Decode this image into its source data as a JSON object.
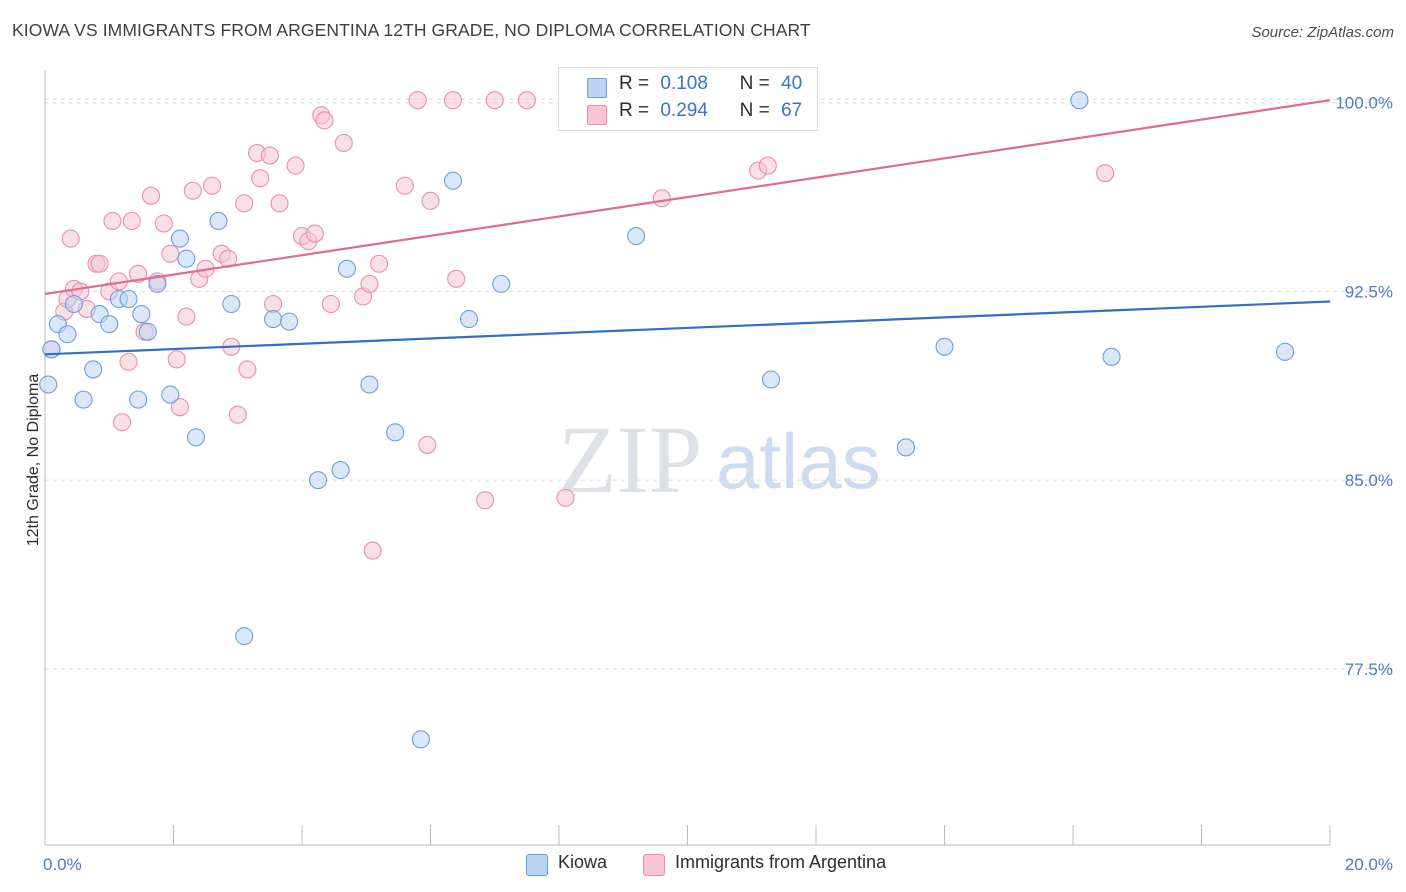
{
  "header": {
    "title": "KIOWA VS IMMIGRANTS FROM ARGENTINA 12TH GRADE, NO DIPLOMA CORRELATION CHART",
    "source": "Source: ZipAtlas.com"
  },
  "watermark": {
    "zip": "ZIP",
    "atlas": "atlas"
  },
  "legend": {
    "r_label": "R =",
    "n_label": "N =",
    "series": [
      {
        "name": "Kiowa",
        "r": "0.108",
        "n": "40"
      },
      {
        "name": "Immigrants from Argentina",
        "r": "0.294",
        "n": "67"
      }
    ]
  },
  "colors": {
    "kiowa_fill": "#b9d3f3",
    "kiowa_stroke": "#6f9edb",
    "kiowa_line": "#2f6fc6",
    "arg_fill": "#f7c5d4",
    "arg_stroke": "#e98fab",
    "arg_line": "#e06a92",
    "grid": "#d9dde3",
    "tick_label": "#4a7cc8"
  },
  "chart_data": {
    "type": "scatter",
    "ylabel": "12th Grade, No Diploma",
    "xlim": [
      0,
      20
    ],
    "ylim": [
      70.5,
      101.3
    ],
    "x_tick_labels": [
      {
        "value": 0,
        "label": "0.0%"
      },
      {
        "value": 20,
        "label": "20.0%"
      }
    ],
    "x_minor_ticks": [
      0,
      2,
      4,
      6,
      8,
      10,
      12,
      14,
      16,
      18,
      20
    ],
    "y_ticks": [
      {
        "value": 100,
        "label": "100.0%"
      },
      {
        "value": 92.5,
        "label": "92.5%"
      },
      {
        "value": 85,
        "label": "85.0%"
      },
      {
        "value": 77.5,
        "label": "77.5%"
      }
    ],
    "grid": true,
    "series": [
      {
        "name": "Kiowa",
        "trend": {
          "x": [
            0,
            20
          ],
          "y": [
            90.0,
            92.1
          ]
        },
        "points": [
          [
            0.05,
            88.8
          ],
          [
            0.2,
            91.2
          ],
          [
            0.35,
            90.8
          ],
          [
            0.45,
            92.0
          ],
          [
            0.6,
            88.2
          ],
          [
            0.75,
            89.4
          ],
          [
            0.85,
            91.6
          ],
          [
            1.0,
            91.2
          ],
          [
            1.15,
            92.2
          ],
          [
            1.3,
            92.2
          ],
          [
            1.45,
            88.2
          ],
          [
            1.5,
            91.6
          ],
          [
            1.6,
            90.9
          ],
          [
            1.75,
            92.8
          ],
          [
            1.95,
            88.4
          ],
          [
            2.1,
            94.6
          ],
          [
            2.2,
            93.8
          ],
          [
            2.35,
            86.7
          ],
          [
            2.7,
            95.3
          ],
          [
            2.9,
            92.0
          ],
          [
            3.1,
            78.8
          ],
          [
            3.55,
            91.4
          ],
          [
            3.8,
            91.3
          ],
          [
            4.25,
            85.0
          ],
          [
            4.6,
            85.4
          ],
          [
            4.7,
            93.4
          ],
          [
            5.05,
            88.8
          ],
          [
            5.45,
            86.9
          ],
          [
            5.85,
            74.7
          ],
          [
            6.35,
            96.9
          ],
          [
            6.6,
            91.4
          ],
          [
            7.1,
            92.8
          ],
          [
            9.2,
            94.7
          ],
          [
            11.3,
            89.0
          ],
          [
            13.4,
            86.3
          ],
          [
            14.0,
            90.3
          ],
          [
            16.1,
            100.1
          ],
          [
            16.6,
            89.9
          ],
          [
            19.3,
            90.1
          ],
          [
            0.1,
            90.2
          ]
        ]
      },
      {
        "name": "Immigrants from Argentina",
        "trend": {
          "x": [
            0,
            20
          ],
          "y": [
            92.4,
            100.1
          ]
        },
        "points": [
          [
            0.1,
            90.2
          ],
          [
            0.3,
            91.7
          ],
          [
            0.35,
            92.2
          ],
          [
            0.4,
            94.6
          ],
          [
            0.45,
            92.6
          ],
          [
            0.55,
            92.5
          ],
          [
            0.65,
            91.8
          ],
          [
            0.8,
            93.6
          ],
          [
            0.85,
            93.6
          ],
          [
            1.0,
            92.5
          ],
          [
            1.05,
            95.3
          ],
          [
            1.2,
            87.3
          ],
          [
            1.3,
            89.7
          ],
          [
            1.35,
            95.3
          ],
          [
            1.45,
            93.2
          ],
          [
            1.55,
            90.9
          ],
          [
            1.65,
            96.3
          ],
          [
            1.75,
            92.9
          ],
          [
            1.85,
            95.2
          ],
          [
            1.95,
            94.0
          ],
          [
            2.05,
            89.8
          ],
          [
            2.1,
            87.9
          ],
          [
            2.2,
            91.5
          ],
          [
            2.3,
            96.5
          ],
          [
            2.4,
            93.0
          ],
          [
            2.5,
            93.4
          ],
          [
            2.6,
            96.7
          ],
          [
            2.75,
            94.0
          ],
          [
            2.85,
            93.8
          ],
          [
            2.9,
            90.3
          ],
          [
            3.0,
            87.6
          ],
          [
            3.1,
            96.0
          ],
          [
            3.15,
            89.4
          ],
          [
            3.3,
            98.0
          ],
          [
            3.35,
            97.0
          ],
          [
            3.5,
            97.9
          ],
          [
            3.55,
            92.0
          ],
          [
            3.65,
            96.0
          ],
          [
            3.9,
            97.5
          ],
          [
            4.0,
            94.7
          ],
          [
            4.1,
            94.5
          ],
          [
            4.2,
            94.8
          ],
          [
            4.3,
            99.5
          ],
          [
            4.35,
            99.3
          ],
          [
            4.45,
            92.0
          ],
          [
            4.65,
            98.4
          ],
          [
            4.95,
            92.3
          ],
          [
            5.05,
            92.8
          ],
          [
            5.2,
            93.6
          ],
          [
            5.1,
            82.2
          ],
          [
            5.6,
            96.7
          ],
          [
            5.8,
            100.1
          ],
          [
            5.95,
            86.4
          ],
          [
            6.0,
            96.1
          ],
          [
            6.35,
            100.1
          ],
          [
            6.4,
            93.0
          ],
          [
            6.85,
            84.2
          ],
          [
            7.0,
            100.1
          ],
          [
            7.5,
            100.1
          ],
          [
            8.1,
            84.3
          ],
          [
            8.4,
            100.1
          ],
          [
            9.8,
            100.1
          ],
          [
            9.6,
            96.2
          ],
          [
            11.1,
            97.3
          ],
          [
            11.25,
            97.5
          ],
          [
            16.5,
            97.2
          ],
          [
            1.15,
            92.9
          ]
        ]
      }
    ]
  }
}
